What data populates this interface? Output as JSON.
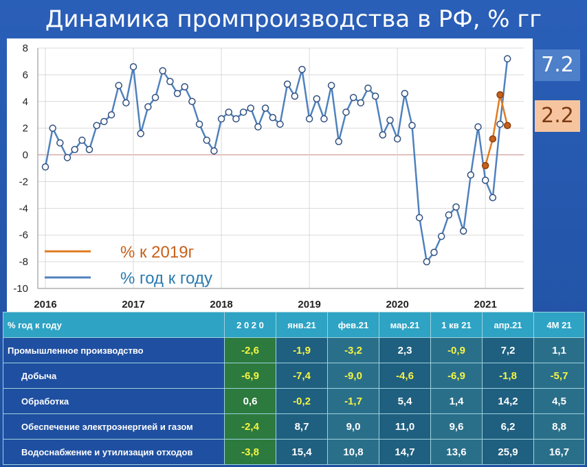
{
  "title": "Динамика промпроизводства в РФ, % гг",
  "callouts": {
    "yoy": "7.2",
    "vs2019": "2.2"
  },
  "chart_data": {
    "type": "line",
    "ylim": [
      -10,
      8
    ],
    "yticks": [
      8,
      6,
      4,
      2,
      0,
      -2,
      -4,
      -6,
      -8,
      -10
    ],
    "year_ticks": [
      {
        "label": "2016",
        "x": 0
      },
      {
        "label": "2017",
        "x": 12
      },
      {
        "label": "2018",
        "x": 24
      },
      {
        "label": "2019",
        "x": 36
      },
      {
        "label": "2020",
        "x": 48
      },
      {
        "label": "2021",
        "x": 60
      }
    ],
    "legend": [
      {
        "label": "% к 2019г",
        "color": "#e07b1f"
      },
      {
        "label": "% год к году",
        "color": "#4f81bd"
      }
    ],
    "series": [
      {
        "name": "% год к году",
        "color": "#4f81bd",
        "values": [
          -0.9,
          2.0,
          0.9,
          -0.2,
          0.4,
          1.1,
          0.4,
          2.2,
          2.5,
          3.0,
          5.2,
          3.9,
          6.6,
          1.6,
          3.6,
          4.3,
          6.3,
          5.5,
          4.6,
          5.1,
          4.0,
          2.3,
          1.1,
          0.3,
          2.7,
          3.2,
          2.7,
          3.2,
          3.5,
          2.1,
          3.5,
          2.8,
          2.3,
          5.3,
          4.4,
          6.4,
          2.7,
          4.2,
          2.7,
          5.2,
          1.0,
          3.2,
          4.3,
          3.9,
          5.0,
          4.4,
          1.5,
          2.6,
          1.2,
          4.6,
          2.2,
          -4.7,
          -8.0,
          -7.3,
          -6.1,
          -4.5,
          -3.9,
          -5.7,
          -1.5,
          2.1,
          -1.9,
          -3.2,
          2.3,
          7.2
        ]
      },
      {
        "name": "% к 2019г",
        "color": "#e07b1f",
        "x_start": 60,
        "values": [
          -0.8,
          1.2,
          4.5,
          2.2
        ]
      }
    ]
  },
  "table": {
    "headers": [
      "% год к году",
      "2 0 2 0",
      "янв.21",
      "фев.21",
      "мар.21",
      "1 кв 21",
      "апр.21",
      "4М 21"
    ],
    "rows": [
      {
        "label": "Промышленное производство",
        "values": [
          "-2,6",
          "-1,9",
          "-3,2",
          "2,3",
          "-0,9",
          "7,2",
          "1,1"
        ]
      },
      {
        "label": "Добыча",
        "values": [
          "-6,9",
          "-7,4",
          "-9,0",
          "-4,6",
          "-6,9",
          "-1,8",
          "-5,7"
        ]
      },
      {
        "label": "Обработка",
        "values": [
          "0,6",
          "-0,2",
          "-1,7",
          "5,4",
          "1,4",
          "14,2",
          "4,5"
        ]
      },
      {
        "label": "Обеспечение электроэнергией и газом",
        "values": [
          "-2,4",
          "8,7",
          "9,0",
          "11,0",
          "9,6",
          "6,2",
          "8,8"
        ]
      },
      {
        "label": "Водоснабжение и утилизация отходов",
        "values": [
          "-3,8",
          "15,4",
          "10,8",
          "14,7",
          "13,6",
          "25,9",
          "16,7"
        ]
      }
    ]
  }
}
